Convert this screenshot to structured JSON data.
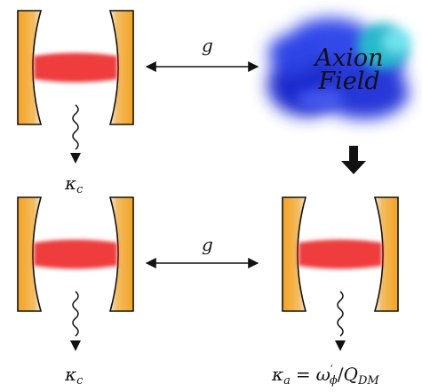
{
  "top_row": {
    "coupling_label": "g",
    "decay_label": "κ",
    "decay_sub": "c",
    "axion_field": {
      "line1": "Axion",
      "line2": "Field",
      "colors": [
        "#1a2bd6",
        "#3f57f0",
        "#21b7c9",
        "#5fe0ea"
      ]
    }
  },
  "bottom_row": {
    "coupling_label": "g",
    "left_decay_label": "κ",
    "left_decay_sub": "c",
    "right_decay": {
      "kappa": "κ",
      "kappa_sub": "a",
      "equals": "=",
      "omega": "ω",
      "omega_sup": "′",
      "omega_sub": "ϕ",
      "slash": "/",
      "Q": "Q",
      "Q_sub": "DM"
    }
  },
  "colors": {
    "mirror_orange": "#f6a21e",
    "mirror_light": "#f4e7cf",
    "beam_red": "#ee2a2a",
    "arrow": "#111111"
  }
}
